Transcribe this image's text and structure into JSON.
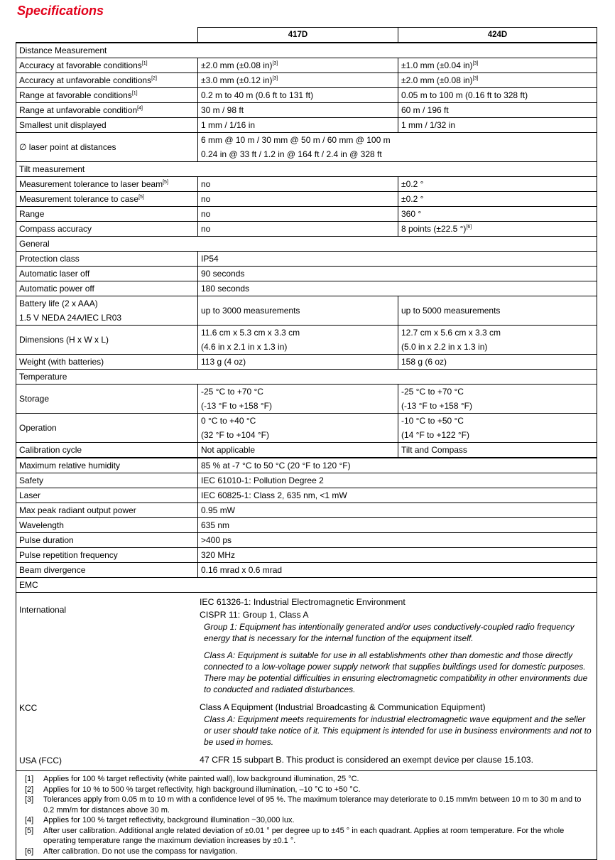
{
  "header": {
    "title": "Specifications"
  },
  "table": {
    "columns": [
      "417D",
      "424D"
    ],
    "sections": [
      {
        "title": "Distance Measurement",
        "rows": [
          {
            "label": "Accuracy at favorable conditions",
            "label_note": "[1]",
            "c417": "±2.0 mm (±0.08 in)",
            "c417_note": "[3]",
            "c424": "±1.0 mm (±0.04 in)",
            "c424_note": "[3]"
          },
          {
            "label": "Accuracy at unfavorable conditions",
            "label_note": "[2]",
            "c417": "±3.0 mm (±0.12 in)",
            "c417_note": "[3]",
            "c424": "±2.0 mm (±0.08 in)",
            "c424_note": "[3]"
          },
          {
            "label": "Range at favorable conditions",
            "label_note": "[1]",
            "c417": "0.2 m to 40 m (0.6 ft to 131 ft)",
            "c424": "0.05 m to 100 m (0.16 ft to 328 ft)"
          },
          {
            "label": "Range at unfavorable condition",
            "label_note": "[4]",
            "c417": "30 m / 98 ft",
            "c424": "60 m / 196 ft"
          },
          {
            "label": "Smallest unit displayed",
            "c417": "1 mm / 1/16 in",
            "c424": "1 mm / 1/32 in"
          },
          {
            "label": "∅ laser point at distances",
            "both": [
              "6 mm @ 10 m / 30 mm @ 50 m / 60 mm @ 100 m",
              "0.24 in @ 33 ft / 1.2 in @ 164 ft / 2.4 in @ 328 ft"
            ]
          }
        ]
      },
      {
        "title": "Tilt measurement",
        "rows": [
          {
            "label": "Measurement tolerance to laser beam",
            "label_note": "[5]",
            "c417": "no",
            "c424": "±0.2 °"
          },
          {
            "label": "Measurement tolerance to case",
            "label_note": "[5]",
            "c417": "no",
            "c424": "±0.2 °"
          },
          {
            "label": "Range",
            "c417": "no",
            "c424": "360 °"
          },
          {
            "label": "Compass accuracy",
            "c417": "no",
            "c424": "8 points (±22.5 °)",
            "c424_note": "[6]"
          }
        ]
      },
      {
        "title": "General",
        "rows": [
          {
            "label": "Protection class",
            "both": "IP54"
          },
          {
            "label": "Automatic laser off",
            "both": "90 seconds"
          },
          {
            "label": "Automatic power off",
            "both": "180 seconds"
          },
          {
            "label": [
              "Battery life (2 x AAA)",
              "1.5 V NEDA 24A/IEC LR03"
            ],
            "c417": "up to 3000 measurements",
            "c424": "up to 5000 measurements"
          },
          {
            "label": "Dimensions (H x W x L)",
            "c417": [
              "11.6 cm x 5.3 cm x 3.3 cm",
              "(4.6 in x 2.1 in x 1.3 in)"
            ],
            "c424": [
              "12.7 cm x 5.6 cm x 3.3 cm",
              "(5.0 in x 2.2 in x 1.3 in)"
            ]
          },
          {
            "label": "Weight (with batteries)",
            "c417": "113 g (4 oz)",
            "c424": "158 g (6 oz)"
          }
        ]
      },
      {
        "title": "Temperature",
        "rows": [
          {
            "label": "Storage",
            "c417": [
              "-25 °C to +70 °C",
              "(-13 °F to +158 °F)"
            ],
            "c424": [
              "-25 °C to +70 °C",
              "(-13 °F to +158 °F)"
            ]
          },
          {
            "label": "Operation",
            "c417": [
              "0 °C to +40 °C",
              "(32 °F to +104 °F)"
            ],
            "c424": [
              "-10 °C to +50 °C",
              "(14 °F to +122 °F)"
            ]
          },
          {
            "label": "Calibration cycle",
            "c417": "Not applicable",
            "c424": "Tilt and Compass"
          }
        ]
      },
      {
        "rows": [
          {
            "label": "Maximum relative humidity",
            "both": "85 % at -7 °C to 50 °C (20 °F to 120 °F)"
          },
          {
            "label": "Safety",
            "both": "IEC 61010-1: Pollution Degree 2"
          },
          {
            "label": "Laser",
            "both": "IEC 60825-1: Class 2, 635 nm, <1 mW"
          },
          {
            "label": "Max peak radiant output power",
            "both": "0.95 mW"
          },
          {
            "label": "Wavelength",
            "both": "635 nm"
          },
          {
            "label": "Pulse duration",
            "both": ">400 ps"
          },
          {
            "label": "Pulse repetition frequency",
            "both": "320 MHz"
          },
          {
            "label": "Beam divergence",
            "both": "0.16 mrad x 0.6 mrad"
          }
        ]
      }
    ],
    "emc": {
      "title": "EMC",
      "entries": [
        {
          "label": "International",
          "items": [
            {
              "text": "IEC 61326-1: Industrial Electromagnetic Environment"
            },
            {
              "text": "CISPR 11: Group 1, Class A",
              "notes": [
                "Group 1: Equipment has intentionally generated and/or uses conductively-coupled radio frequency energy that is necessary for the internal function of the equipment itself.",
                "Class A: Equipment is suitable for use in all establishments other than domestic and those directly connected to a low-voltage power supply network that supplies buildings used for domestic purposes. There may be potential difficulties in ensuring electromagnetic compatibility in other environments due to conducted and radiated disturbances."
              ]
            }
          ]
        },
        {
          "label": "KCC",
          "items": [
            {
              "text": "Class A Equipment (Industrial Broadcasting & Communication Equipment)",
              "notes": [
                "Class A: Equipment meets requirements for industrial electromagnetic wave equipment and the seller or user should take notice of it. This equipment is intended for use in business environments and not to be used in homes."
              ]
            }
          ]
        },
        {
          "label": "USA (FCC)",
          "items": [
            {
              "text": "47 CFR 15 subpart B. This product is considered an exempt device per clause 15.103."
            }
          ]
        }
      ]
    },
    "footnotes": [
      {
        "num": "[1]",
        "text": "Applies for 100 % target reflectivity (white painted wall), low background illumination, 25 °C."
      },
      {
        "num": "[2]",
        "text": "Applies for 10 % to 500 % target reflectivity, high background illumination, –10 °C to +50 °C."
      },
      {
        "num": "[3]",
        "text": "Tolerances apply from 0.05 m to 10 m with a confidence level of 95 %. The maximum tolerance may deteriorate to 0.15 mm/m between 10 m to 30 m and to 0.2 mm/m for distances above 30 m."
      },
      {
        "num": "[4]",
        "text": "Applies for 100 % target reflectivity, background illumination ~30,000 lux."
      },
      {
        "num": "[5]",
        "text": "After user calibration. Additional angle related deviation of ±0.01 ° per degree up to ±45 ° in each quadrant. Applies at room temperature. For the whole operating temperature range the maximum deviation increases by ±0.1 °."
      },
      {
        "num": "[6]",
        "text": "After calibration. Do not use the compass for navigation."
      }
    ]
  }
}
